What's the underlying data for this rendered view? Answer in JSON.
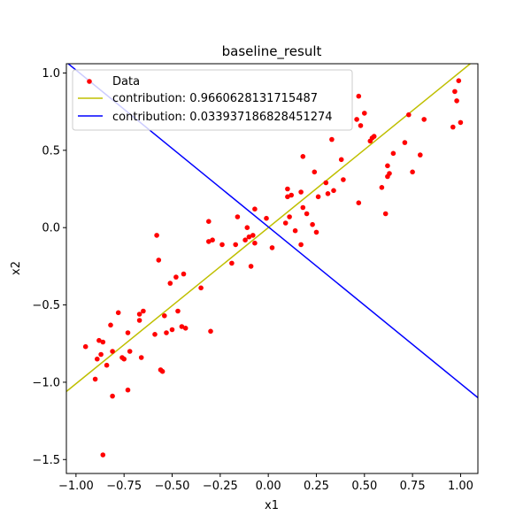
{
  "chart_data": {
    "type": "scatter",
    "title": "baseline_result",
    "xlabel": "x1",
    "ylabel": "x2",
    "xlim": [
      -1.05,
      1.09
    ],
    "ylim": [
      -1.59,
      1.06
    ],
    "xticks": [
      -1.0,
      -0.75,
      -0.5,
      -0.25,
      0.0,
      0.25,
      0.5,
      0.75,
      1.0
    ],
    "xtick_labels": [
      "−1.00",
      "−0.75",
      "−0.50",
      "−0.25",
      "0.00",
      "0.25",
      "0.50",
      "0.75",
      "1.00"
    ],
    "yticks": [
      -1.5,
      -1.0,
      -0.5,
      0.0,
      0.5,
      1.0
    ],
    "ytick_labels": [
      "−1.5",
      "−1.0",
      "−0.5",
      "0.0",
      "0.5",
      "1.0"
    ],
    "legend_position": "upper-left",
    "colors": {
      "data": "#ff0000",
      "line1": "#bfbf00",
      "line2": "#0000ff"
    },
    "series": [
      {
        "name": "Data",
        "kind": "points",
        "points": [
          [
            -0.95,
            -0.77
          ],
          [
            -0.9,
            -0.98
          ],
          [
            -0.89,
            -0.85
          ],
          [
            -0.88,
            -0.73
          ],
          [
            -0.87,
            -0.82
          ],
          [
            -0.86,
            -1.47
          ],
          [
            -0.86,
            -0.74
          ],
          [
            -0.84,
            -0.89
          ],
          [
            -0.82,
            -0.63
          ],
          [
            -0.81,
            -0.8
          ],
          [
            -0.81,
            -1.09
          ],
          [
            -0.78,
            -0.55
          ],
          [
            -0.76,
            -0.84
          ],
          [
            -0.75,
            -0.85
          ],
          [
            -0.73,
            -0.68
          ],
          [
            -0.73,
            -1.05
          ],
          [
            -0.72,
            -0.8
          ],
          [
            -0.67,
            -0.56
          ],
          [
            -0.67,
            -0.6
          ],
          [
            -0.66,
            -0.84
          ],
          [
            -0.65,
            -0.54
          ],
          [
            -0.59,
            -0.69
          ],
          [
            -0.58,
            -0.05
          ],
          [
            -0.57,
            -0.21
          ],
          [
            -0.56,
            -0.92
          ],
          [
            -0.55,
            -0.93
          ],
          [
            -0.54,
            -0.57
          ],
          [
            -0.53,
            -0.68
          ],
          [
            -0.51,
            -0.36
          ],
          [
            -0.5,
            -0.66
          ],
          [
            -0.48,
            -0.32
          ],
          [
            -0.47,
            -0.54
          ],
          [
            -0.45,
            -0.64
          ],
          [
            -0.44,
            -0.3
          ],
          [
            -0.43,
            -0.65
          ],
          [
            -0.35,
            -0.39
          ],
          [
            -0.31,
            -0.09
          ],
          [
            -0.31,
            0.04
          ],
          [
            -0.3,
            -0.67
          ],
          [
            -0.29,
            -0.08
          ],
          [
            -0.24,
            -0.11
          ],
          [
            -0.19,
            -0.23
          ],
          [
            -0.17,
            -0.11
          ],
          [
            -0.16,
            0.07
          ],
          [
            -0.12,
            -0.08
          ],
          [
            -0.11,
            0.0
          ],
          [
            -0.1,
            -0.06
          ],
          [
            -0.09,
            -0.25
          ],
          [
            -0.08,
            -0.05
          ],
          [
            -0.07,
            -0.1
          ],
          [
            -0.07,
            0.12
          ],
          [
            -0.01,
            0.06
          ],
          [
            0.02,
            -0.13
          ],
          [
            0.09,
            0.03
          ],
          [
            0.1,
            0.2
          ],
          [
            0.1,
            0.25
          ],
          [
            0.11,
            0.07
          ],
          [
            0.12,
            0.21
          ],
          [
            0.14,
            -0.02
          ],
          [
            0.17,
            0.23
          ],
          [
            0.17,
            -0.11
          ],
          [
            0.18,
            0.46
          ],
          [
            0.18,
            0.13
          ],
          [
            0.2,
            0.09
          ],
          [
            0.23,
            0.02
          ],
          [
            0.24,
            0.36
          ],
          [
            0.25,
            -0.03
          ],
          [
            0.26,
            0.2
          ],
          [
            0.3,
            0.29
          ],
          [
            0.31,
            0.22
          ],
          [
            0.33,
            0.57
          ],
          [
            0.34,
            0.24
          ],
          [
            0.38,
            0.44
          ],
          [
            0.39,
            0.31
          ],
          [
            0.46,
            0.7
          ],
          [
            0.47,
            0.16
          ],
          [
            0.47,
            0.85
          ],
          [
            0.48,
            0.66
          ],
          [
            0.5,
            0.74
          ],
          [
            0.53,
            0.56
          ],
          [
            0.54,
            0.58
          ],
          [
            0.55,
            0.59
          ],
          [
            0.59,
            0.26
          ],
          [
            0.61,
            0.09
          ],
          [
            0.62,
            0.4
          ],
          [
            0.62,
            0.33
          ],
          [
            0.63,
            0.35
          ],
          [
            0.65,
            0.48
          ],
          [
            0.71,
            0.55
          ],
          [
            0.73,
            0.73
          ],
          [
            0.75,
            0.36
          ],
          [
            0.79,
            0.47
          ],
          [
            0.81,
            0.7
          ],
          [
            0.96,
            0.65
          ],
          [
            0.97,
            0.88
          ],
          [
            0.98,
            0.82
          ],
          [
            0.99,
            0.95
          ],
          [
            1.0,
            0.68
          ]
        ]
      },
      {
        "name": "contribution: 0.9660628131715487",
        "kind": "line",
        "points": [
          [
            -1.05,
            -1.06
          ],
          [
            1.09,
            1.1
          ]
        ]
      },
      {
        "name": "contribution: 0.033937186828451274",
        "kind": "line",
        "points": [
          [
            -1.05,
            1.07
          ],
          [
            1.09,
            -1.1
          ]
        ]
      }
    ]
  }
}
